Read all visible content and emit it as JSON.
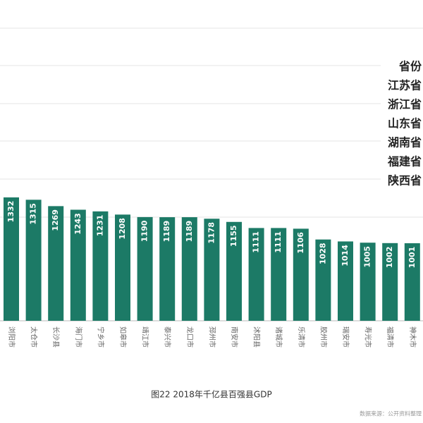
{
  "chart_data": {
    "type": "bar",
    "title": "图22  2018年千亿县百强县GDP",
    "source": "数据来源：公开资料整理",
    "categories": [
      "浏阳市",
      "太仓市",
      "长沙县",
      "海门市",
      "宁乡市",
      "如皋市",
      "靖江市",
      "泰兴市",
      "龙口市",
      "邳州市",
      "南安市",
      "沭阳县",
      "诸城市",
      "乐清市",
      "胶州市",
      "瑞安市",
      "寿光市",
      "福清市",
      "神木市"
    ],
    "values": [
      1332,
      1315,
      1269,
      1243,
      1231,
      1208,
      1190,
      1189,
      1189,
      1178,
      1155,
      1111,
      1111,
      1106,
      1028,
      1014,
      1005,
      1002,
      1001
    ],
    "color": "#1c7a66",
    "ylim": [
      441,
      2554
    ],
    "legend_title": "省份",
    "legend_items": [
      "江苏省",
      "浙江省",
      "山东省",
      "湖南省",
      "福建省",
      "陕西省"
    ]
  }
}
